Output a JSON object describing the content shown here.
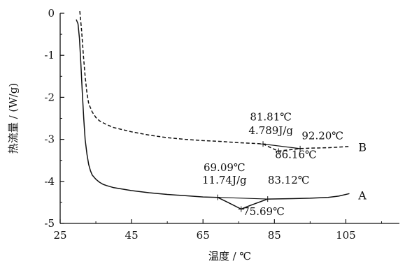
{
  "chart_data": {
    "type": "line",
    "xlabel": "温度 / ℃",
    "ylabel": "热流量 / (W/g)",
    "xlim": [
      25,
      120
    ],
    "ylim": [
      -5,
      0
    ],
    "x_ticks": [
      "25",
      "45",
      "65",
      "85",
      "105"
    ],
    "x_tick_values": [
      25,
      45,
      65,
      85,
      105
    ],
    "y_ticks": [
      "0",
      "-1",
      "-2",
      "-3",
      "-4",
      "-5"
    ],
    "y_tick_values": [
      0,
      -1,
      -2,
      -3,
      -4,
      -5
    ],
    "grid": false,
    "series": [
      {
        "name": "A",
        "style": "solid",
        "color": "#111111",
        "x": [
          29.5,
          30.0,
          30.4,
          30.8,
          31.2,
          31.6,
          32.0,
          32.5,
          33.0,
          33.5,
          34.0,
          35.0,
          36.0,
          37.0,
          38.0,
          40.0,
          45.0,
          50.0,
          55.0,
          60.0,
          65.0,
          69.09,
          72.0,
          75.69,
          78.0,
          83.12,
          90.0,
          95.0,
          100.0,
          103.0,
          106.0
        ],
        "y": [
          -0.15,
          -0.25,
          -0.6,
          -1.2,
          -1.9,
          -2.5,
          -3.0,
          -3.35,
          -3.6,
          -3.75,
          -3.85,
          -3.95,
          -4.02,
          -4.07,
          -4.1,
          -4.15,
          -4.22,
          -4.27,
          -4.31,
          -4.34,
          -4.37,
          -4.38,
          -4.5,
          -4.66,
          -4.58,
          -4.42,
          -4.41,
          -4.4,
          -4.38,
          -4.35,
          -4.29
        ]
      },
      {
        "name": "B",
        "style": "dashed",
        "color": "#111111",
        "x": [
          30.5,
          31.0,
          31.5,
          32.0,
          32.5,
          33.0,
          34.0,
          35.0,
          36.0,
          38.0,
          40.0,
          45.0,
          50.0,
          55.0,
          60.0,
          65.0,
          70.0,
          75.0,
          80.0,
          81.81,
          84.0,
          86.16,
          88.0,
          92.2,
          95.0,
          100.0,
          106.0
        ],
        "y": [
          0.05,
          -0.4,
          -1.0,
          -1.5,
          -1.9,
          -2.15,
          -2.35,
          -2.48,
          -2.56,
          -2.65,
          -2.72,
          -2.82,
          -2.9,
          -2.96,
          -3.0,
          -3.03,
          -3.05,
          -3.08,
          -3.1,
          -3.11,
          -3.2,
          -3.28,
          -3.26,
          -3.22,
          -3.21,
          -3.2,
          -3.17
        ]
      }
    ],
    "baselines": [
      {
        "series": "A",
        "x": [
          69.09,
          83.12
        ],
        "y": [
          -4.38,
          -4.42
        ]
      },
      {
        "series": "B",
        "x": [
          81.81,
          92.2
        ],
        "y": [
          -3.11,
          -3.22
        ]
      }
    ],
    "peak_markers": [
      {
        "series": "A",
        "x": 75.69,
        "y": -4.66
      },
      {
        "series": "B",
        "x": 86.16,
        "y": -3.28
      }
    ],
    "annotations": [
      {
        "text": "69.09℃",
        "x": 71.0,
        "y": -3.75
      },
      {
        "text": "11.74J/g",
        "x": 71.0,
        "y": -4.05
      },
      {
        "text": "83.12℃",
        "x": 89.0,
        "y": -4.05
      },
      {
        "text": "75.69℃",
        "x": 82.0,
        "y": -4.8
      },
      {
        "text": "81.81℃",
        "x": 84.0,
        "y": -2.55
      },
      {
        "text": "4.789J/g",
        "x": 84.0,
        "y": -2.87
      },
      {
        "text": "92.20℃",
        "x": 98.5,
        "y": -3.0
      },
      {
        "text": "86.16℃",
        "x": 91.0,
        "y": -3.45
      }
    ],
    "series_labels": [
      {
        "text": "A",
        "x": 108.5,
        "y": -4.33
      },
      {
        "text": "B",
        "x": 108.5,
        "y": -3.18
      }
    ]
  }
}
